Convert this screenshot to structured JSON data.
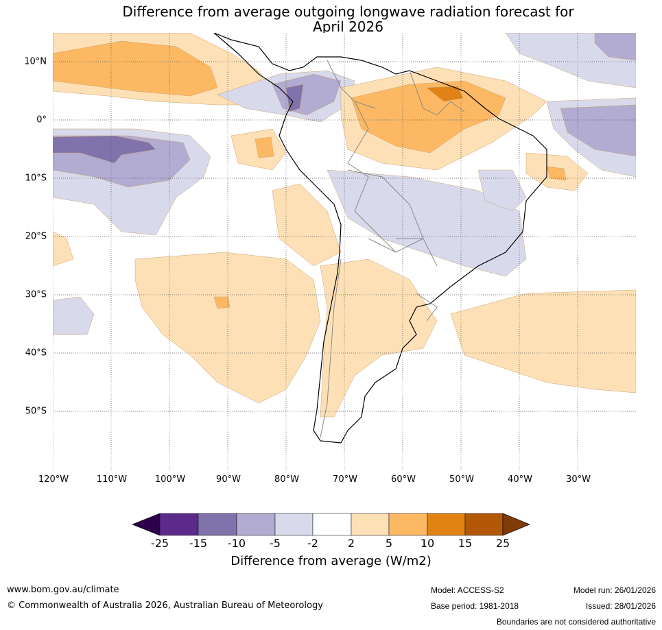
{
  "title": {
    "line1": "Difference from average outgoing longwave radiation forecast for",
    "line2": "April 2026"
  },
  "axes": {
    "lon_labels": [
      "120°W",
      "110°W",
      "100°W",
      "90°W",
      "80°W",
      "70°W",
      "60°W",
      "50°W",
      "40°W",
      "30°W"
    ],
    "lat_labels": [
      "10°N",
      "0°",
      "10°S",
      "20°S",
      "30°S",
      "40°S",
      "50°S"
    ]
  },
  "legend": {
    "title": "Difference from average (W/m2)",
    "ticks": [
      "-25",
      "-15",
      "-10",
      "-5",
      "-2",
      "2",
      "5",
      "10",
      "15",
      "25"
    ],
    "colors": [
      "#2d004b",
      "#5b2a8a",
      "#8073ac",
      "#b2abd2",
      "#d8daeb",
      "#ffffff",
      "#fee0b6",
      "#fdb863",
      "#e08214",
      "#b35806",
      "#7f3b08"
    ]
  },
  "footer": {
    "website": "www.bom.gov.au/climate",
    "copyright": "© Commonwealth of Australia 2026, Australian Bureau of Meteorology",
    "model": "Model: ACCESS-S2",
    "base_period": "Base period: 1981-2018",
    "model_run": "Model run: 26/01/2026",
    "issued": "Issued: 28/01/2026",
    "disclaimer": "Boundaries are not considered authoritative"
  }
}
